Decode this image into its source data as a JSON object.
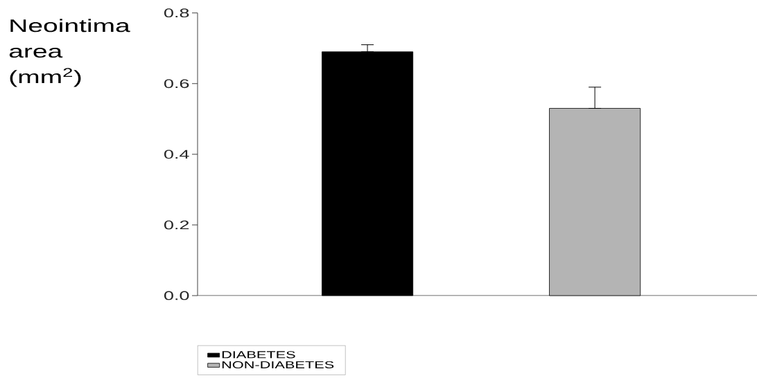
{
  "chart_data": {
    "type": "bar",
    "ylabel": "Neointima area (mm$^{2}$)",
    "categories": [
      null,
      null
    ],
    "series": [
      {
        "name": "DIABETES",
        "color": "#000000",
        "values": [
          0.69,
          null
        ],
        "errors": [
          [
            0.69,
            0.71
          ],
          null
        ]
      },
      {
        "name": "NON-DIABETES",
        "color": "#b4b4b4",
        "values": [
          null,
          0.53
        ],
        "errors": [
          null,
          [
            0.53,
            0.59
          ]
        ]
      }
    ],
    "ylim": [
      0,
      0.8
    ],
    "yticks": [
      {
        "value": 0,
        "label": "0.0"
      },
      0.2,
      0.4,
      0.6,
      0.8
    ],
    "grid": false,
    "legend": "bottom left"
  }
}
